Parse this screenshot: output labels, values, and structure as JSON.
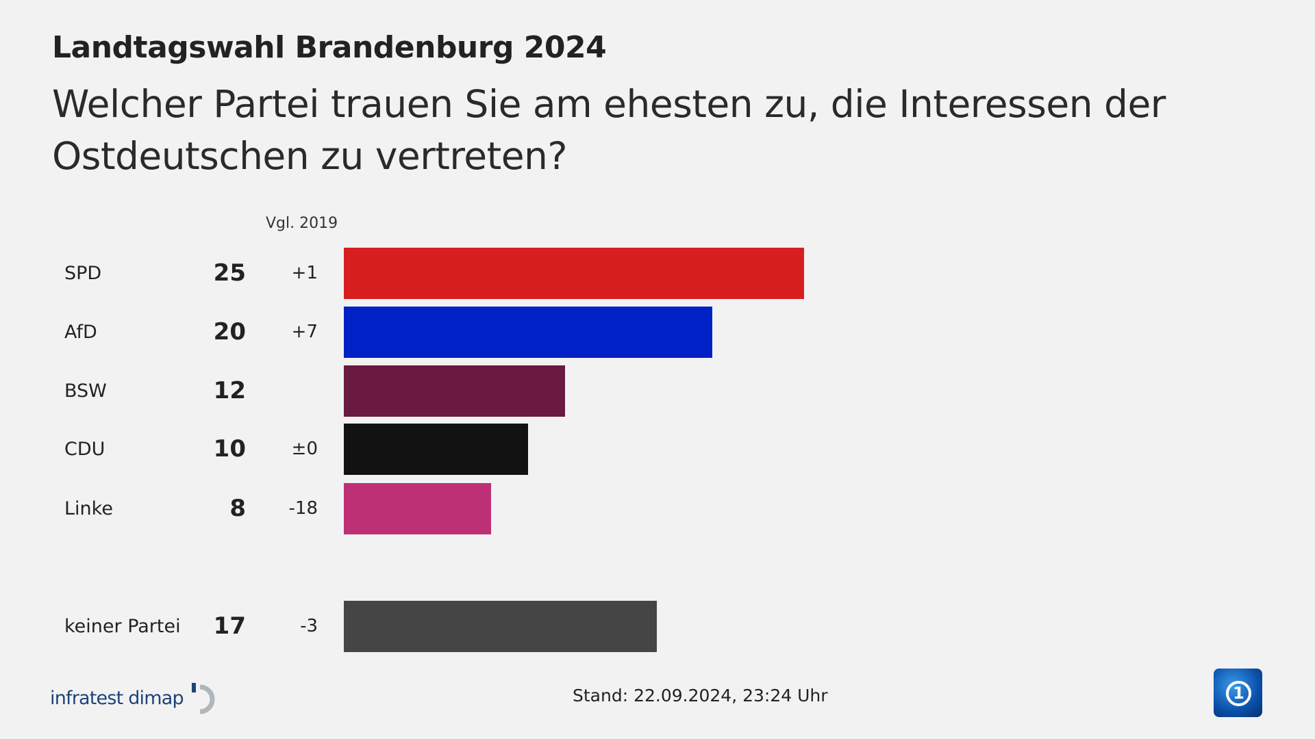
{
  "kicker": "Landtagswahl Brandenburg 2024",
  "question": "Welcher Partei trauen Sie am ehesten zu, die Interessen der Ostdeutschen zu vertreten?",
  "compare_header": "Vgl. 2019",
  "footer": {
    "source_logo": "infratest dimap",
    "stand": "Stand:  22.09.2024, 23:24 Uhr",
    "broadcaster_logo": "ARD"
  },
  "chart_data": {
    "type": "bar",
    "orientation": "horizontal",
    "unit": "percent",
    "xlim": [
      0,
      40
    ],
    "categories": [
      "SPD",
      "AfD",
      "BSW",
      "CDU",
      "Linke",
      "keiner Partei"
    ],
    "values": [
      25,
      20,
      12,
      10,
      8,
      17
    ],
    "value_labels": [
      "25",
      "20",
      "12",
      "10",
      "8",
      "17"
    ],
    "change_vs_2019": [
      "+1",
      "+7",
      "",
      "±0",
      "-18",
      "-3"
    ],
    "colors": [
      "#d71f1f",
      "#0021c6",
      "#6a1940",
      "#121212",
      "#be3075",
      "#454545"
    ]
  }
}
